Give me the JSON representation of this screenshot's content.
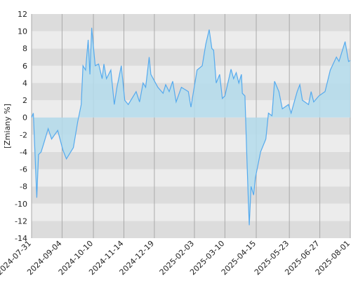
{
  "chart_data": {
    "type": "area",
    "y_label": "[Zmiany %]",
    "x": [
      "2024-07-31",
      "2024-08-02",
      "2024-08-06",
      "2024-08-08",
      "2024-08-11",
      "2024-08-14",
      "2024-08-19",
      "2024-08-23",
      "2024-08-30",
      "2024-09-05",
      "2024-09-09",
      "2024-09-17",
      "2024-09-22",
      "2024-09-26",
      "2024-09-28",
      "2024-10-01",
      "2024-10-04",
      "2024-10-06",
      "2024-10-08",
      "2024-10-12",
      "2024-10-16",
      "2024-10-20",
      "2024-10-22",
      "2024-10-25",
      "2024-10-30",
      "2024-11-03",
      "2024-11-06",
      "2024-11-11",
      "2024-11-15",
      "2024-11-19",
      "2024-11-28",
      "2024-12-02",
      "2024-12-06",
      "2024-12-09",
      "2024-12-13",
      "2024-12-15",
      "2024-12-23",
      "2024-12-29",
      "2025-01-01",
      "2025-01-05",
      "2025-01-09",
      "2025-01-13",
      "2025-01-19",
      "2025-01-27",
      "2025-01-30",
      "2025-02-06",
      "2025-02-12",
      "2025-02-16",
      "2025-02-20",
      "2025-02-23",
      "2025-02-25",
      "2025-02-28",
      "2025-03-04",
      "2025-03-07",
      "2025-03-10",
      "2025-03-17",
      "2025-03-20",
      "2025-03-23",
      "2025-03-26",
      "2025-03-29",
      "2025-03-30",
      "2025-04-02",
      "2025-04-04",
      "2025-04-06",
      "2025-04-07",
      "2025-04-09",
      "2025-04-12",
      "2025-04-14",
      "2025-04-20",
      "2025-04-26",
      "2025-04-29",
      "2025-05-03",
      "2025-05-06",
      "2025-05-11",
      "2025-05-15",
      "2025-05-22",
      "2025-05-25",
      "2025-06-01",
      "2025-06-04",
      "2025-06-07",
      "2025-06-14",
      "2025-06-17",
      "2025-06-20",
      "2025-06-26",
      "2025-07-03",
      "2025-07-09",
      "2025-07-16",
      "2025-07-19",
      "2025-07-26",
      "2025-07-30",
      "2025-08-01"
    ],
    "series": [
      {
        "color": "#55aaee",
        "fill": "#b4dcec",
        "values": [
          0,
          0.5,
          -9.3,
          -4.3,
          -4,
          -3,
          -1.3,
          -2.5,
          -1.5,
          -3.8,
          -4.8,
          -3.5,
          -0.5,
          1.5,
          6,
          5.5,
          9,
          5,
          10.4,
          6,
          6.2,
          4.5,
          6.2,
          4.5,
          5.5,
          1.5,
          3.5,
          6,
          2,
          1.5,
          3,
          1.8,
          4,
          3.5,
          7,
          5,
          3.5,
          2.8,
          3.8,
          3,
          4.2,
          1.8,
          3.5,
          3,
          1.2,
          5.5,
          6,
          8.5,
          10.2,
          8,
          7.8,
          4,
          5,
          2.2,
          2.5,
          5.6,
          4.5,
          5.2,
          4,
          5,
          2.8,
          2.5,
          -4,
          -10,
          -12.5,
          -8,
          -9,
          -7,
          -4,
          -2.5,
          0.5,
          0.2,
          4.2,
          3,
          1,
          1.5,
          0.5,
          3,
          3.8,
          2,
          1.5,
          3,
          1.8,
          2.5,
          3,
          5.5,
          7,
          6.5,
          8.8,
          6.5,
          6.6
        ]
      }
    ],
    "xlim": [
      "2024-07-31",
      "2025-08-01"
    ],
    "xticks": [
      "2024-07-31",
      "2024-09-04",
      "2024-10-10",
      "2024-11-14",
      "2024-12-19",
      "2025-02-03",
      "2025-03-10",
      "2025-04-15",
      "2025-05-23",
      "2025-06-27",
      "2025-08-01"
    ],
    "ylim": [
      -14,
      12
    ],
    "yticks": [
      -14,
      -12,
      -10,
      -8,
      -6,
      -4,
      -2,
      0,
      2,
      4,
      6,
      8,
      10,
      12
    ],
    "band_colors": [
      "#dcdcdc",
      "#ececec"
    ],
    "grid": true
  }
}
